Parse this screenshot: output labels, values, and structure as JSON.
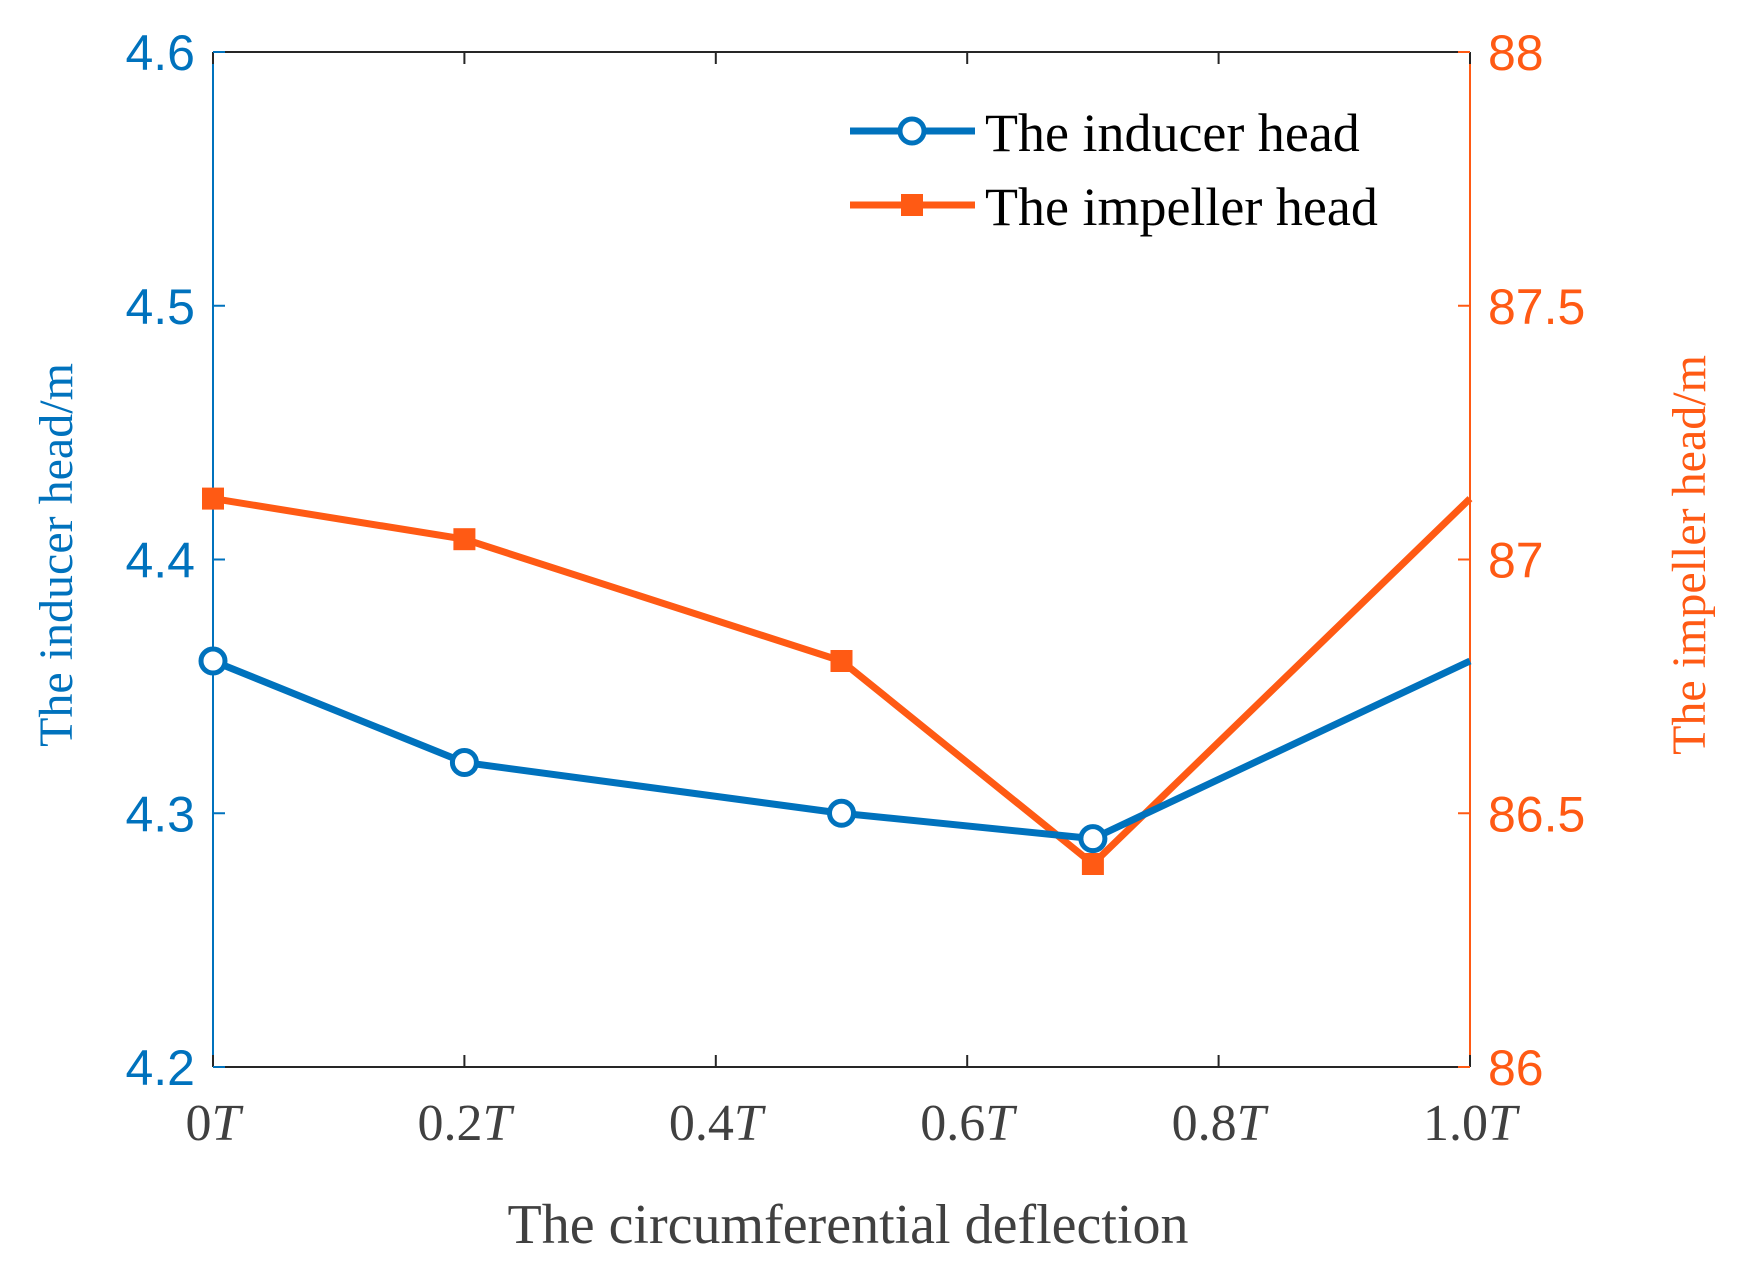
{
  "chart_data": {
    "type": "line",
    "x_positions": [
      0,
      0.2,
      0.5,
      0.7,
      1.0
    ],
    "x_ticks": [
      {
        "value": 0,
        "label": "0",
        "suffix": "T"
      },
      {
        "value": 0.2,
        "label": "0.2",
        "suffix": "T"
      },
      {
        "value": 0.4,
        "label": "0.4",
        "suffix": "T"
      },
      {
        "value": 0.6,
        "label": "0.6",
        "suffix": "T"
      },
      {
        "value": 0.8,
        "label": "0.8",
        "suffix": "T"
      },
      {
        "value": 1.0,
        "label": "1.0",
        "suffix": "T"
      }
    ],
    "xlim": [
      0,
      1.0
    ],
    "xlabel": "The circumferential deflection",
    "left_axis": {
      "label": "The inducer head/m",
      "ylim": [
        4.2,
        4.6
      ],
      "ticks": [
        "4.2",
        "4.3",
        "4.4",
        "4.5",
        "4.6"
      ],
      "tick_values": [
        4.2,
        4.3,
        4.4,
        4.5,
        4.6
      ],
      "color": "#0072BD"
    },
    "right_axis": {
      "label": "The impeller head/m",
      "ylim": [
        86,
        88
      ],
      "ticks": [
        "86",
        "86.5",
        "87",
        "87.5",
        "88"
      ],
      "tick_values": [
        86,
        86.5,
        87,
        87.5,
        88
      ],
      "color": "#FF5A14"
    },
    "series": [
      {
        "name": "The inducer head",
        "axis": "left",
        "marker": "circle",
        "color": "#0072BD",
        "values": [
          4.36,
          4.32,
          4.3,
          4.29,
          4.36
        ]
      },
      {
        "name": "The impeller head",
        "axis": "right",
        "marker": "square",
        "color": "#FF5A14",
        "values": [
          87.12,
          87.04,
          86.8,
          86.4,
          87.12
        ]
      }
    ],
    "legend_position": "top-right"
  }
}
